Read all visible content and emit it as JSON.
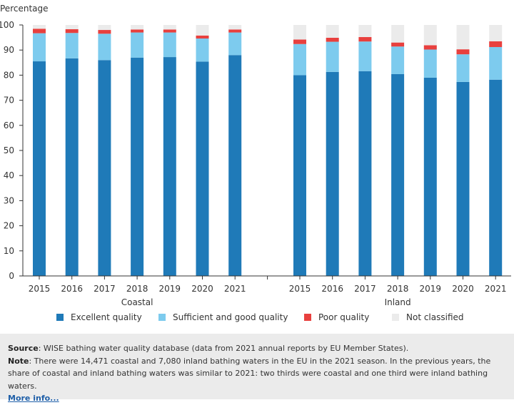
{
  "chart_data": {
    "type": "bar",
    "stacked": true,
    "ylabel": "Percentage",
    "ylim": [
      0,
      100
    ],
    "yticks": [
      0,
      10,
      20,
      30,
      40,
      50,
      60,
      70,
      80,
      90,
      100
    ],
    "grid": false,
    "legend_position": "bottom",
    "groups": [
      {
        "label": "Coastal",
        "categories": [
          "2015",
          "2016",
          "2017",
          "2018",
          "2019",
          "2020",
          "2021"
        ],
        "series": [
          {
            "name": "Excellent quality",
            "values": [
              85.5,
              86.7,
              86.0,
              87.0,
              87.2,
              85.4,
              88.0
            ]
          },
          {
            "name": "Sufficient and good quality",
            "values": [
              11.2,
              10.1,
              10.5,
              10.0,
              9.8,
              9.2,
              9.0
            ]
          },
          {
            "name": "Poor quality",
            "values": [
              1.8,
              1.5,
              1.5,
              1.2,
              1.2,
              1.2,
              1.2
            ]
          },
          {
            "name": "Not classified",
            "values": [
              1.5,
              1.7,
              2.0,
              1.8,
              1.8,
              4.2,
              1.8
            ]
          }
        ]
      },
      {
        "label": "Inland",
        "categories": [
          "2015",
          "2016",
          "2017",
          "2018",
          "2019",
          "2020",
          "2021"
        ],
        "series": [
          {
            "name": "Excellent quality",
            "values": [
              80.0,
              81.3,
              81.6,
              80.4,
              79.0,
              77.3,
              78.2
            ]
          },
          {
            "name": "Sufficient and good quality",
            "values": [
              12.4,
              12.0,
              11.8,
              11.0,
              11.2,
              11.0,
              13.0
            ]
          },
          {
            "name": "Poor quality",
            "values": [
              1.8,
              1.6,
              1.8,
              1.6,
              1.7,
              2.0,
              2.3
            ]
          },
          {
            "name": "Not classified",
            "values": [
              5.8,
              5.1,
              4.8,
              7.0,
              8.1,
              9.7,
              6.5
            ]
          }
        ]
      }
    ]
  },
  "colors": {
    "Excellent quality": "#1f7ab8",
    "Sufficient and good quality": "#7dcbee",
    "Poor quality": "#e8403e",
    "Not classified": "#ebebeb",
    "axis": "#333333"
  },
  "legend": [
    {
      "label": "Excellent quality"
    },
    {
      "label": "Sufficient and good quality"
    },
    {
      "label": "Poor quality"
    },
    {
      "label": "Not classified"
    }
  ],
  "notes": {
    "source_label": "Source",
    "source_text": ": WISE bathing water quality database (data from 2021 annual reports by EU Member States).",
    "note_label": "Note",
    "note_text": ": There were 14,471 coastal and 7,080 inland bathing waters in the EU in the 2021 season. In the previous years, the share of coastal and inland bathing waters was similar to 2021: two thirds were coastal and one third were inland bathing waters.",
    "more_info": "More info..."
  }
}
